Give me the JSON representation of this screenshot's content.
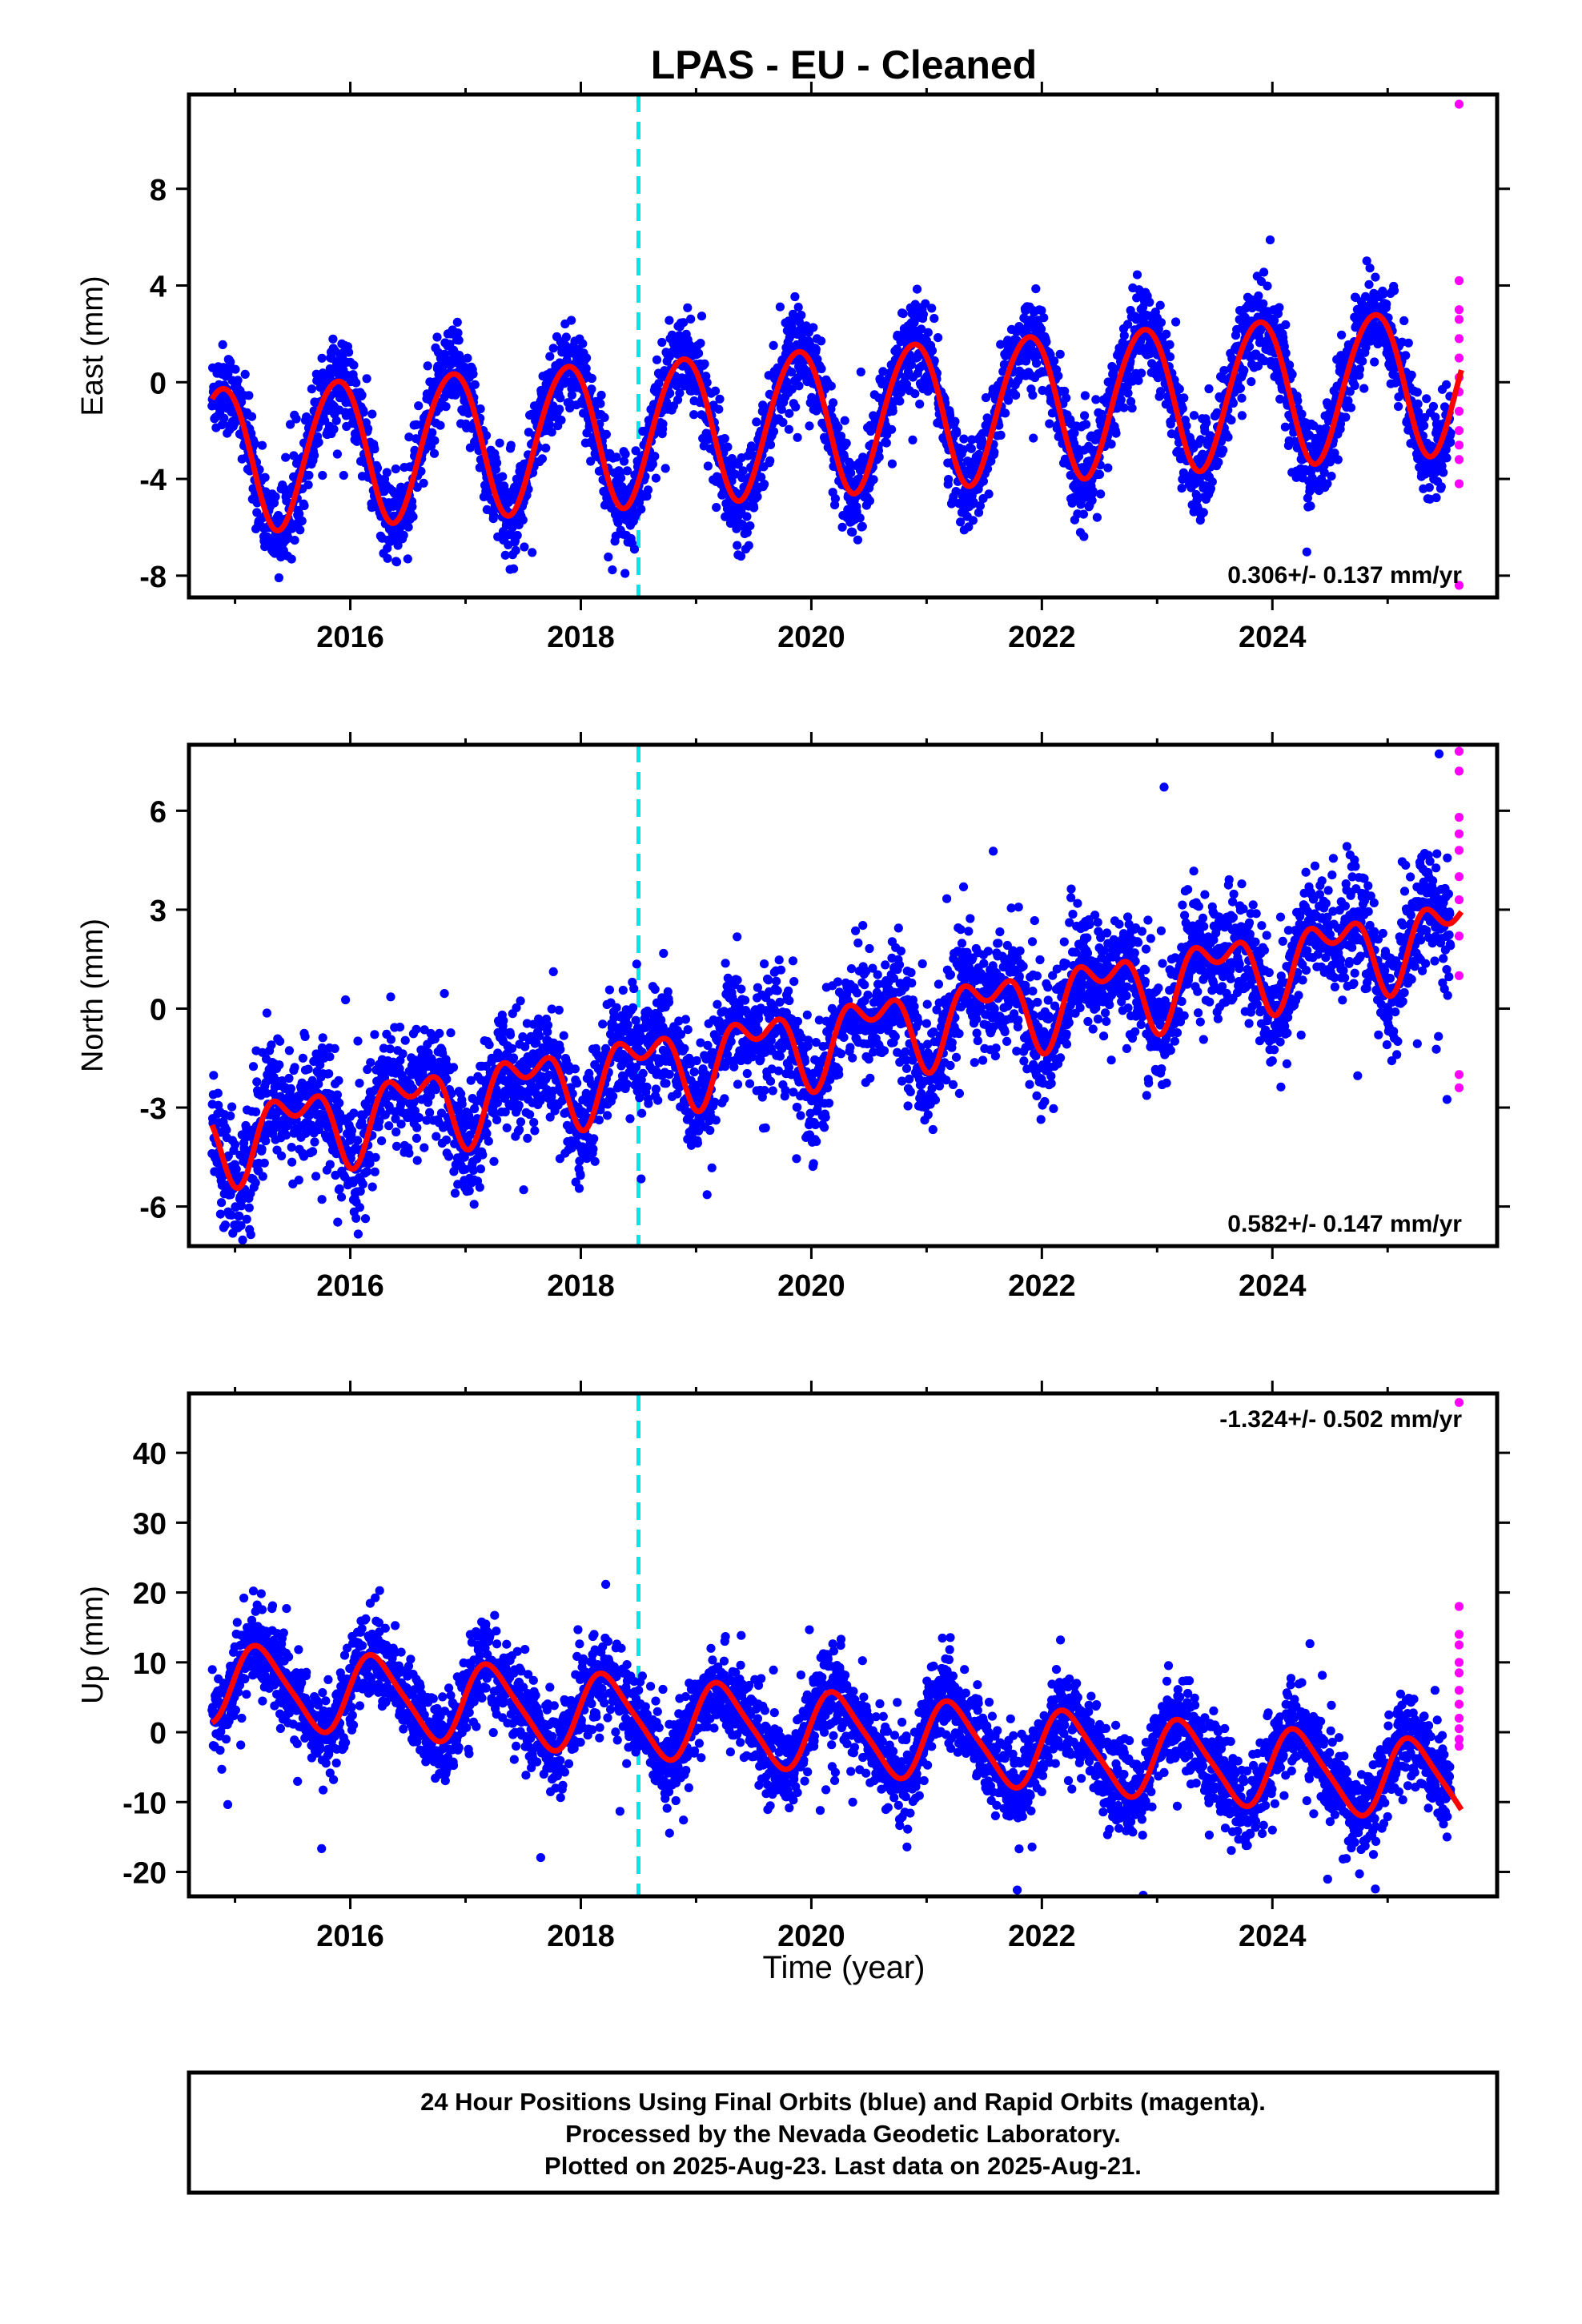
{
  "chart_data": {
    "title": "LPAS  - EU - Cleaned",
    "xlabel": "Time (year)",
    "type": "scatter",
    "x_range": [
      2014.6,
      2025.95
    ],
    "x_ticks": [
      2016,
      2018,
      2020,
      2022,
      2024
    ],
    "colors": {
      "final_orbits": "#0000ff",
      "rapid_orbits": "#ff00ff",
      "model_fit": "#ff0000",
      "event_line": "#00e5ee"
    },
    "event_line_year": 2018.5,
    "data_start": 2014.8,
    "rapid_start": 2025.55,
    "data_end": 2025.64,
    "panels": [
      {
        "ylabel": "East (mm)",
        "ylim": [
          -8.9,
          11.9
        ],
        "y_ticks": [
          -8,
          -4,
          0,
          4,
          8
        ],
        "rate_text": "0.306+/- 0.137 mm/yr",
        "rate_position": "bottom-right",
        "trend_mm_per_yr": 0.306,
        "trend_offset": -1.55,
        "annual_amplitude": 3.0,
        "annual_phase": 2.32,
        "semiannual_amplitude": 0.2,
        "semiannual_phase": 0.5,
        "noise": 0.9,
        "rapid_points": [
          11.5,
          4.2,
          3.0,
          2.6,
          1.8,
          1.0,
          0.2,
          -0.4,
          -1.2,
          -2.0,
          -2.6,
          -3.2,
          -4.2,
          -8.4
        ]
      },
      {
        "ylabel": "North (mm)",
        "ylim": [
          -7.2,
          8.0
        ],
        "y_ticks": [
          -6,
          -3,
          0,
          3,
          6
        ],
        "rate_text": "0.582+/- 0.147 mm/yr",
        "rate_position": "bottom-right",
        "trend_mm_per_yr": 0.582,
        "trend_offset": -0.95,
        "annual_amplitude": 0.95,
        "annual_phase": -1.7,
        "semiannual_amplitude": 0.65,
        "semiannual_phase": -1.9,
        "noise": 0.85,
        "rapid_points": [
          7.8,
          7.2,
          5.8,
          5.3,
          4.8,
          4.0,
          3.3,
          2.2,
          1.0,
          -2.0,
          -2.4
        ]
      },
      {
        "ylabel": "Up (mm)",
        "ylim": [
          -23.5,
          48.5
        ],
        "y_ticks": [
          -20,
          -10,
          0,
          10,
          20,
          30,
          40
        ],
        "rate_text": "-1.324+/- 0.502 mm/yr",
        "rate_position": "top-right",
        "trend_mm_per_yr": -1.324,
        "trend_offset": 0.2,
        "annual_amplitude": 5.5,
        "annual_phase": 0.15,
        "semiannual_amplitude": 1.0,
        "semiannual_phase": 0.3,
        "noise": 3.0,
        "rapid_points": [
          47.2,
          18.0,
          14.0,
          12.5,
          10.0,
          8.5,
          6.0,
          4.0,
          2.0,
          0.5,
          -1.0,
          -2.0
        ]
      }
    ]
  },
  "caption": {
    "line1": "24 Hour Positions Using Final Orbits (blue) and Rapid Orbits (magenta).",
    "line2": "Processed by the Nevada Geodetic Laboratory.",
    "line3": "Plotted on 2025-Aug-23. Last data on 2025-Aug-21."
  }
}
